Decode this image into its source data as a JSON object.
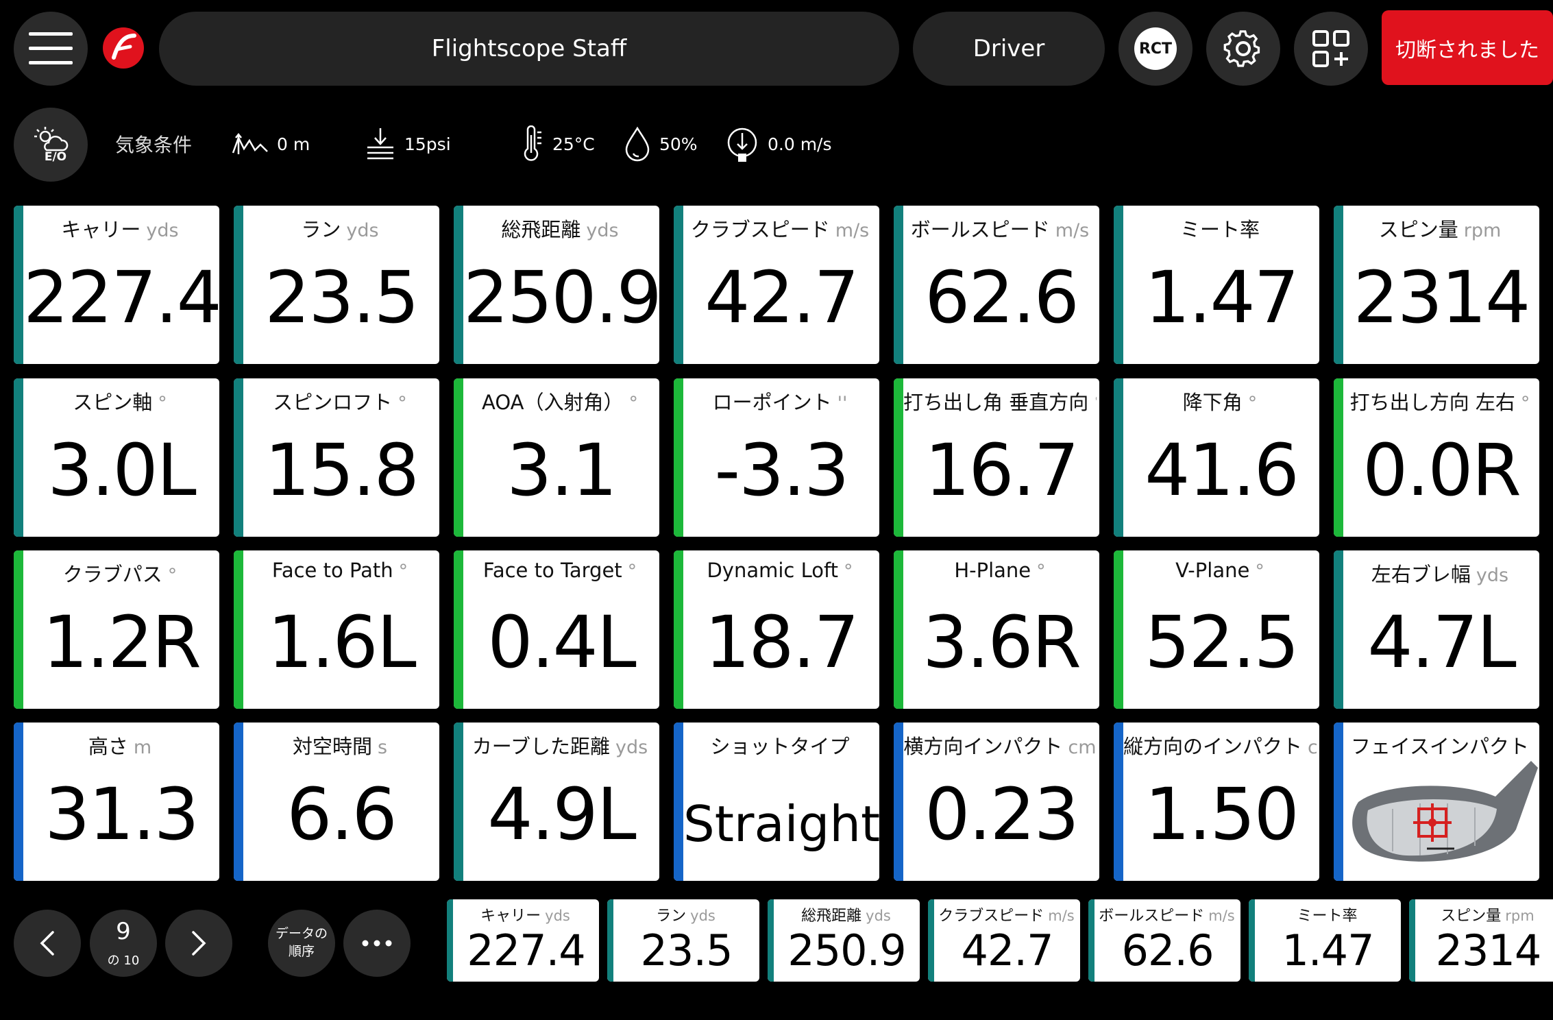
{
  "header": {
    "player": "Flightscope Staff",
    "club": "Driver",
    "rct_label": "RCT",
    "disconnect_label": "切断されました"
  },
  "weather": {
    "button_label": "E/O",
    "label": "気象条件",
    "altitude": "0 m",
    "pressure": "15psi",
    "temperature": "25°C",
    "humidity": "50%",
    "wind": "0.0 m/s"
  },
  "colors": {
    "teal": "#12807c",
    "green": "#1db83a",
    "blue": "#1565c8",
    "disconnect": "#e0121d"
  },
  "tiles": [
    {
      "label": "キャリー",
      "unit": "yds",
      "value": "227.4",
      "color": "teal"
    },
    {
      "label": "ラン",
      "unit": "yds",
      "value": "23.5",
      "color": "teal"
    },
    {
      "label": "総飛距離",
      "unit": "yds",
      "value": "250.9",
      "color": "teal"
    },
    {
      "label": "クラブスピード",
      "unit": "m/s",
      "value": "42.7",
      "color": "teal"
    },
    {
      "label": "ボールスピード",
      "unit": "m/s",
      "value": "62.6",
      "color": "teal"
    },
    {
      "label": "ミート率",
      "unit": "",
      "value": "1.47",
      "color": "teal"
    },
    {
      "label": "スピン量",
      "unit": "rpm",
      "value": "2314",
      "color": "teal"
    },
    {
      "label": "スピン軸",
      "unit": "°",
      "value": "3.0L",
      "color": "teal"
    },
    {
      "label": "スピンロフト",
      "unit": "°",
      "value": "15.8",
      "color": "teal"
    },
    {
      "label": "AOA（入射角）",
      "unit": "°",
      "value": "3.1",
      "color": "green"
    },
    {
      "label": "ローポイント",
      "unit": "''",
      "value": "-3.3",
      "color": "green"
    },
    {
      "label": "打ち出し角 垂直方向",
      "unit": "°",
      "value": "16.7",
      "color": "green"
    },
    {
      "label": "降下角",
      "unit": "°",
      "value": "41.6",
      "color": "teal"
    },
    {
      "label": "打ち出し方向 左右",
      "unit": "°",
      "value": "0.0R",
      "color": "green"
    },
    {
      "label": "クラブパス",
      "unit": "°",
      "value": "1.2R",
      "color": "green"
    },
    {
      "label": "Face to Path",
      "unit": "°",
      "value": "1.6L",
      "color": "green"
    },
    {
      "label": "Face to Target",
      "unit": "°",
      "value": "0.4L",
      "color": "green"
    },
    {
      "label": "Dynamic Loft",
      "unit": "°",
      "value": "18.7",
      "color": "green"
    },
    {
      "label": "H-Plane",
      "unit": "°",
      "value": "3.6R",
      "color": "green"
    },
    {
      "label": "V-Plane",
      "unit": "°",
      "value": "52.5",
      "color": "green"
    },
    {
      "label": "左右ブレ幅",
      "unit": "yds",
      "value": "4.7L",
      "color": "teal"
    },
    {
      "label": "高さ",
      "unit": "m",
      "value": "31.3",
      "color": "blue"
    },
    {
      "label": "対空時間",
      "unit": "s",
      "value": "6.6",
      "color": "blue"
    },
    {
      "label": "カーブした距離",
      "unit": "yds",
      "value": "4.9L",
      "color": "teal"
    },
    {
      "label": "ショットタイプ",
      "unit": "",
      "value": "Straight",
      "color": "blue"
    },
    {
      "label": "横方向インパクト",
      "unit": "cm",
      "value": "0.23",
      "color": "blue"
    },
    {
      "label": "縦方向のインパクト",
      "unit": "cm",
      "value": "1.50",
      "color": "blue"
    },
    {
      "label": "フェイスインパクト",
      "unit": "",
      "value": "",
      "color": "blue",
      "icon": "driver-face-impact-icon"
    }
  ],
  "pager": {
    "current": "9",
    "total": "の 10",
    "order_line1": "データの",
    "order_line2": "順序",
    "more_icon": "more-dots-icon"
  },
  "mini_tiles": [
    {
      "label": "キャリー",
      "unit": "yds",
      "value": "227.4",
      "color": "teal"
    },
    {
      "label": "ラン",
      "unit": "yds",
      "value": "23.5",
      "color": "teal"
    },
    {
      "label": "総飛距離",
      "unit": "yds",
      "value": "250.9",
      "color": "teal"
    },
    {
      "label": "クラブスピード",
      "unit": "m/s",
      "value": "42.7",
      "color": "teal"
    },
    {
      "label": "ボールスピード",
      "unit": "m/s",
      "value": "62.6",
      "color": "teal"
    },
    {
      "label": "ミート率",
      "unit": "",
      "value": "1.47",
      "color": "teal"
    },
    {
      "label": "スピン量",
      "unit": "rpm",
      "value": "2314",
      "color": "teal"
    }
  ]
}
